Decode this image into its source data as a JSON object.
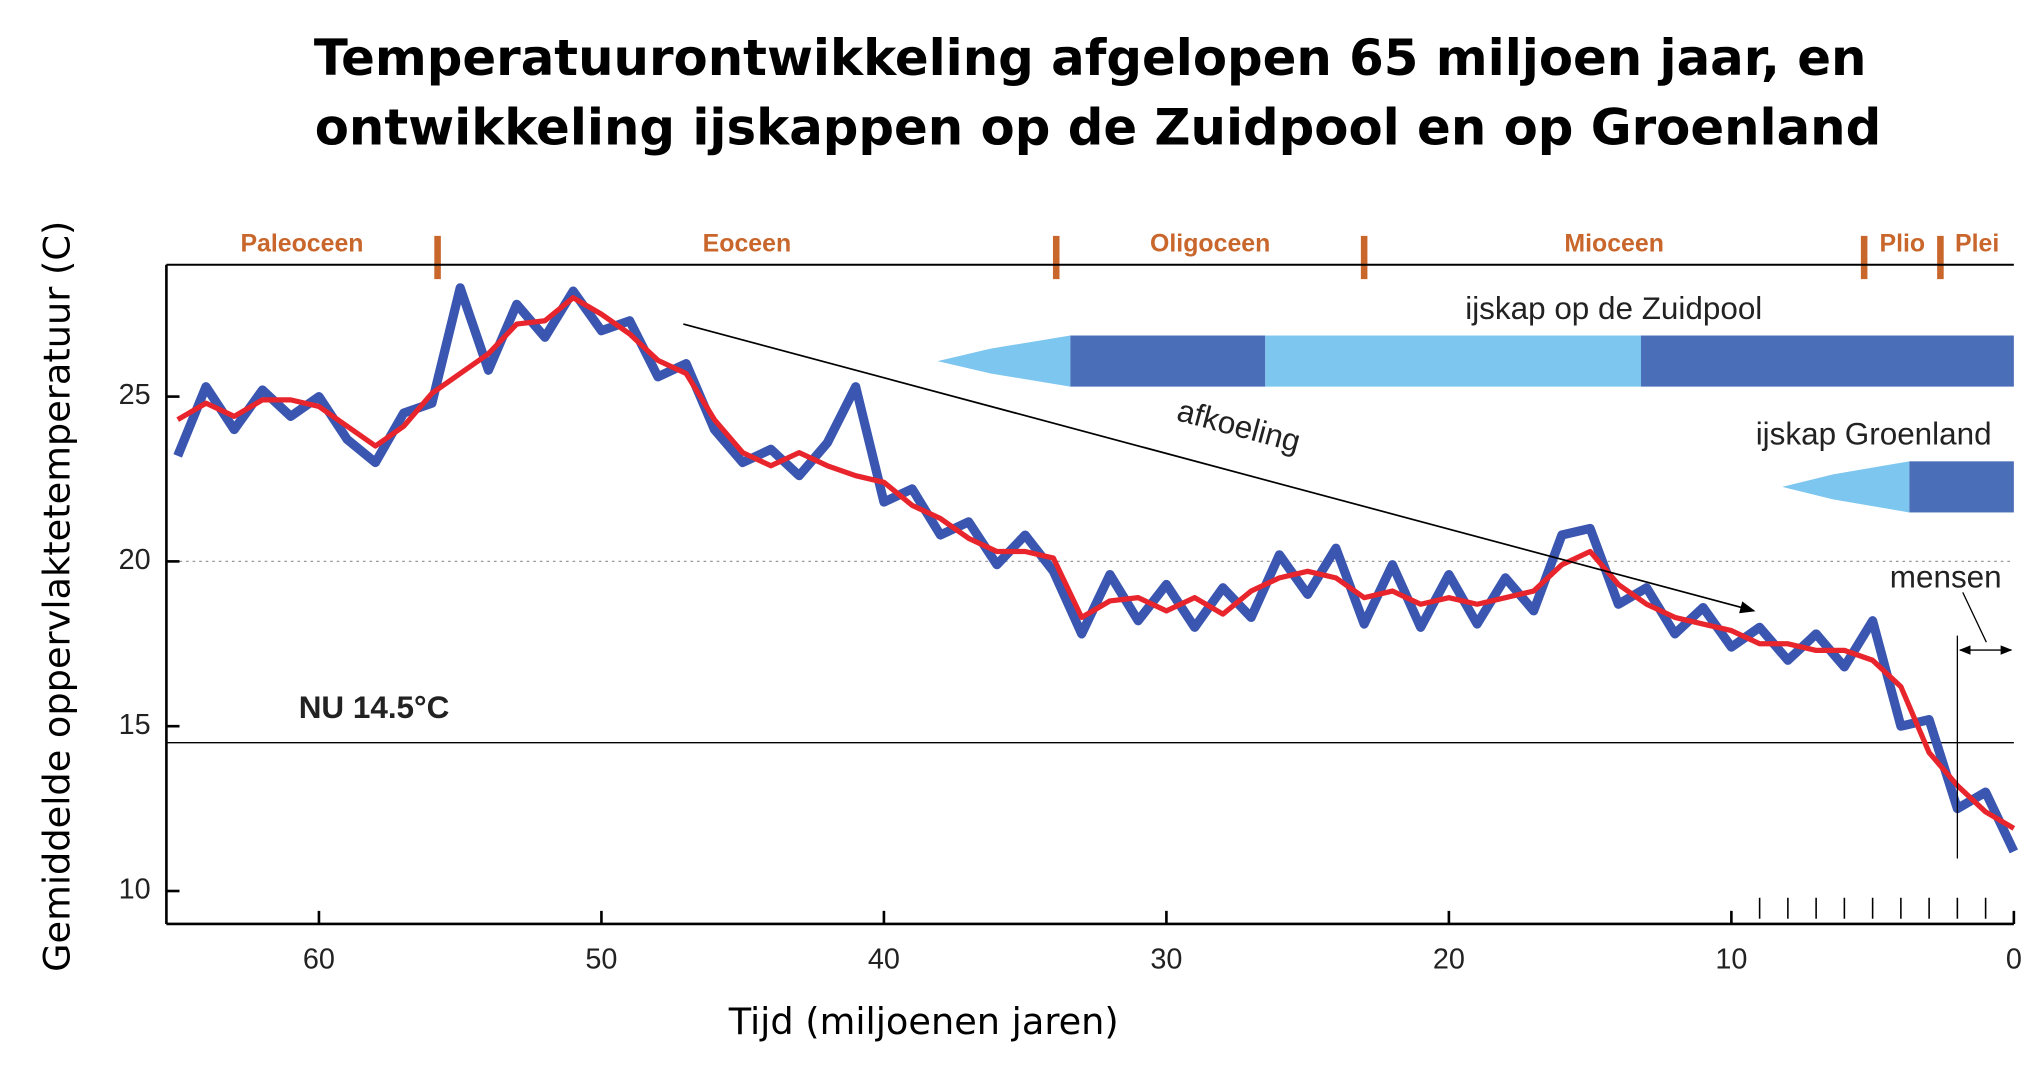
{
  "chart_data": {
    "type": "line",
    "title": [
      "Temperatuurontwikkeling afgelopen 65 miljoen jaar, en",
      "ontwikkeling ijskappen op de Zuidpool en op Groenland"
    ],
    "y_label": "Gemiddelde oppervlaktetemperatuur (C)",
    "x_label": "Tijd (miljoenen jaren)",
    "xlim": [
      65.4,
      0
    ],
    "ylim": [
      9,
      29
    ],
    "xticks": [
      60,
      50,
      40,
      30,
      20,
      10,
      0
    ],
    "yticks": [
      10,
      15,
      20,
      25
    ],
    "minor_xticks": [
      1,
      2,
      3,
      4,
      5,
      6,
      7,
      8,
      9
    ],
    "grid_lines": [
      20
    ],
    "x": [
      65,
      64,
      63,
      62,
      61,
      60,
      59,
      58,
      57,
      56,
      55,
      54,
      53,
      52,
      51,
      50,
      49,
      48,
      47,
      46,
      45,
      44,
      43,
      42,
      41,
      40,
      39,
      38,
      37,
      36,
      35,
      34,
      33,
      32,
      31,
      30,
      29,
      28,
      27,
      26,
      25,
      24,
      23,
      22,
      21,
      20,
      19,
      18,
      17,
      16,
      15,
      14,
      13,
      12,
      11,
      10,
      9,
      8,
      7,
      6,
      5,
      4,
      3,
      2,
      1,
      0
    ],
    "series": [
      {
        "color": "#3a56b0",
        "width": 7,
        "values": [
          23.2,
          25.3,
          24.0,
          25.2,
          24.4,
          25.0,
          23.7,
          23.0,
          24.5,
          24.8,
          28.3,
          25.8,
          27.8,
          26.8,
          28.2,
          27.0,
          27.3,
          25.6,
          26.0,
          24.0,
          23.0,
          23.4,
          22.6,
          23.6,
          25.3,
          21.8,
          22.2,
          20.8,
          21.2,
          19.9,
          20.8,
          19.7,
          17.8,
          19.6,
          18.2,
          19.3,
          18.0,
          19.2,
          18.3,
          20.2,
          19.0,
          20.4,
          18.1,
          19.9,
          18.0,
          19.6,
          18.1,
          19.5,
          18.5,
          20.8,
          21.0,
          18.7,
          19.2,
          17.8,
          18.6,
          17.4,
          18.0,
          17.0,
          17.8,
          16.8,
          18.2,
          15.0,
          15.2,
          12.5,
          13.0,
          11.2
        ]
      },
      {
        "color": "#e8252c",
        "width": 4,
        "values": [
          24.3,
          24.8,
          24.4,
          24.9,
          24.9,
          24.7,
          24.1,
          23.5,
          24.1,
          25.1,
          25.7,
          26.3,
          27.2,
          27.3,
          28.0,
          27.5,
          26.9,
          26.1,
          25.7,
          24.3,
          23.3,
          22.9,
          23.3,
          22.9,
          22.6,
          22.4,
          21.7,
          21.3,
          20.7,
          20.3,
          20.3,
          20.1,
          18.3,
          18.8,
          18.9,
          18.5,
          18.9,
          18.4,
          19.1,
          19.5,
          19.7,
          19.5,
          18.9,
          19.1,
          18.7,
          18.9,
          18.7,
          18.9,
          19.1,
          19.9,
          20.3,
          19.3,
          18.7,
          18.3,
          18.1,
          17.9,
          17.5,
          17.5,
          17.3,
          17.3,
          17.0,
          16.2,
          14.2,
          13.2,
          12.4,
          11.9
        ]
      }
    ],
    "epochs": [
      {
        "name": "Paleoceen",
        "start": 65.4,
        "end": 55.8
      },
      {
        "name": "Eoceen",
        "start": 55.8,
        "end": 33.9
      },
      {
        "name": "Oligoceen",
        "start": 33.9,
        "end": 23.0
      },
      {
        "name": "Mioceen",
        "start": 23.0,
        "end": 5.3
      },
      {
        "name": "Plio",
        "start": 5.3,
        "end": 2.6
      },
      {
        "name": "Plei",
        "start": 2.6,
        "end": 0
      }
    ],
    "epoch_color": "#c8662c",
    "ice_sheets": [
      {
        "label": "ijskap op de Zuidpool",
        "segments": [
          {
            "from": 38.1,
            "to": 33.4,
            "color": "#7cc6f0",
            "taper": true
          },
          {
            "from": 33.4,
            "to": 26.5,
            "color": "#4a6fb8"
          },
          {
            "from": 26.5,
            "to": 13.2,
            "color": "#7cc6f0"
          },
          {
            "from": 13.2,
            "to": 0,
            "color": "#4a6fb8"
          }
        ]
      },
      {
        "label": "ijskap Groenland",
        "segments": [
          {
            "from": 8.2,
            "to": 3.7,
            "color": "#7cc6f0",
            "taper": true
          },
          {
            "from": 3.7,
            "to": 0,
            "color": "#4a6fb8"
          }
        ]
      }
    ],
    "now_value": 14.5,
    "now_label": "NU 14.5°C",
    "trend": {
      "text": "afkoeling",
      "from": [
        47.1,
        27.2
      ],
      "to": [
        9.2,
        18.5
      ]
    },
    "humans": {
      "text": "mensen",
      "start": 2
    }
  }
}
